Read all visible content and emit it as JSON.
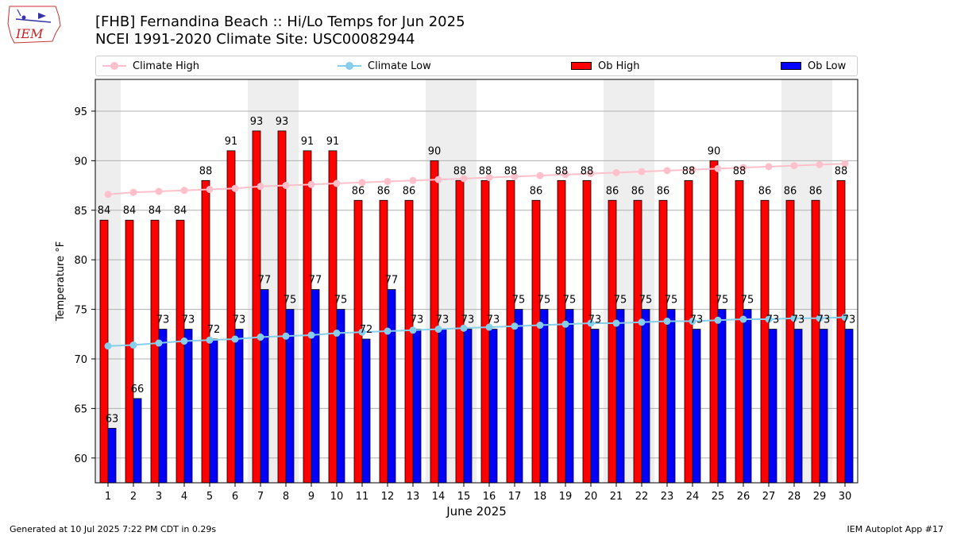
{
  "header": {
    "title_line1": "[FHB] Fernandina Beach :: Hi/Lo Temps for Jun 2025",
    "title_line2": "NCEI 1991-2020 Climate Site: USC00082944",
    "logo_text": "IEM"
  },
  "legend": {
    "climate_high": "Climate High",
    "climate_low": "Climate Low",
    "ob_high": "Ob High",
    "ob_low": "Ob Low"
  },
  "footer": {
    "generated": "Generated at 10 Jul 2025 7:22 PM CDT in 0.29s",
    "app": "IEM Autoplot App #17"
  },
  "colors": {
    "ob_high": "#ff0000",
    "ob_low": "#0000ff",
    "climate_high": "#ffc0cb",
    "climate_low": "#87ceeb",
    "weekend_band": "#eeeeee",
    "grid": "#b0b0b0"
  },
  "chart_data": {
    "type": "bar",
    "xlabel": "June 2025",
    "ylabel": "Temperature °F",
    "ylim": [
      57.5,
      98.2
    ],
    "yticks": [
      60,
      65,
      70,
      75,
      80,
      85,
      90,
      95
    ],
    "grid": "horizontal",
    "legend_placement": "top",
    "categories": [
      1,
      2,
      3,
      4,
      5,
      6,
      7,
      8,
      9,
      10,
      11,
      12,
      13,
      14,
      15,
      16,
      17,
      18,
      19,
      20,
      21,
      22,
      23,
      24,
      25,
      26,
      27,
      28,
      29,
      30
    ],
    "shaded_days": [
      1,
      7,
      8,
      14,
      15,
      21,
      22,
      28,
      29
    ],
    "series": [
      {
        "name": "Ob High",
        "kind": "bar",
        "values": [
          84,
          84,
          84,
          84,
          88,
          91,
          93,
          93,
          91,
          91,
          86,
          86,
          86,
          90,
          88,
          88,
          88,
          86,
          88,
          88,
          86,
          86,
          86,
          88,
          90,
          88,
          86,
          86,
          86,
          88
        ]
      },
      {
        "name": "Ob Low",
        "kind": "bar",
        "values": [
          63,
          66,
          73,
          73,
          72,
          73,
          77,
          75,
          77,
          75,
          72,
          77,
          73,
          73,
          73,
          73,
          75,
          75,
          75,
          73,
          75,
          75,
          75,
          73,
          75,
          75,
          73,
          73,
          73,
          73
        ]
      },
      {
        "name": "Climate High",
        "kind": "line",
        "values": [
          86.6,
          86.8,
          86.9,
          87.0,
          87.1,
          87.2,
          87.4,
          87.5,
          87.6,
          87.7,
          87.8,
          87.9,
          88.0,
          88.1,
          88.2,
          88.3,
          88.4,
          88.5,
          88.6,
          88.7,
          88.8,
          88.9,
          89.0,
          89.1,
          89.2,
          89.3,
          89.4,
          89.5,
          89.6,
          89.7
        ]
      },
      {
        "name": "Climate Low",
        "kind": "line",
        "values": [
          71.3,
          71.4,
          71.6,
          71.8,
          71.9,
          72.0,
          72.2,
          72.3,
          72.4,
          72.6,
          72.7,
          72.8,
          72.9,
          73.0,
          73.1,
          73.2,
          73.3,
          73.4,
          73.5,
          73.6,
          73.6,
          73.7,
          73.8,
          73.8,
          73.9,
          74.0,
          74.0,
          74.1,
          74.1,
          74.2
        ]
      }
    ]
  }
}
